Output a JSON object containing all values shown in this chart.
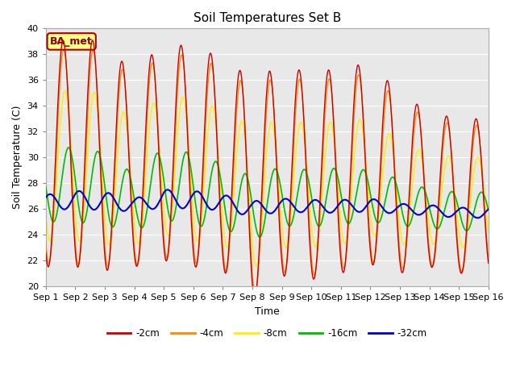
{
  "title": "Soil Temperatures Set B",
  "xlabel": "Time",
  "ylabel": "Soil Temperature (C)",
  "ylim": [
    20,
    40
  ],
  "xlim": [
    0,
    15
  ],
  "xtick_labels": [
    "Sep 1",
    "Sep 2",
    "Sep 3",
    "Sep 4",
    "Sep 5",
    "Sep 6",
    "Sep 7",
    "Sep 8",
    "Sep 9",
    "Sep 10",
    "Sep 11",
    "Sep 12",
    "Sep 13",
    "Sep 14",
    "Sep 15",
    "Sep 16"
  ],
  "legend_labels": [
    "-2cm",
    "-4cm",
    "-8cm",
    "-16cm",
    "-32cm"
  ],
  "legend_colors": [
    "#cc0000",
    "#ff8800",
    "#ffee00",
    "#00bb00",
    "#0000cc"
  ],
  "line_widths": [
    1.0,
    1.0,
    1.0,
    1.2,
    1.5
  ],
  "ba_met_label": "BA_met",
  "ba_met_bg": "#ffff88",
  "ba_met_border": "#aa0000",
  "plot_bg": "#e8e8e8",
  "fig_bg": "#ffffff",
  "grid_color": "#ffffff",
  "title_fontsize": 11,
  "axis_label_fontsize": 9,
  "tick_fontsize": 8,
  "figwidth": 6.4,
  "figheight": 4.8
}
